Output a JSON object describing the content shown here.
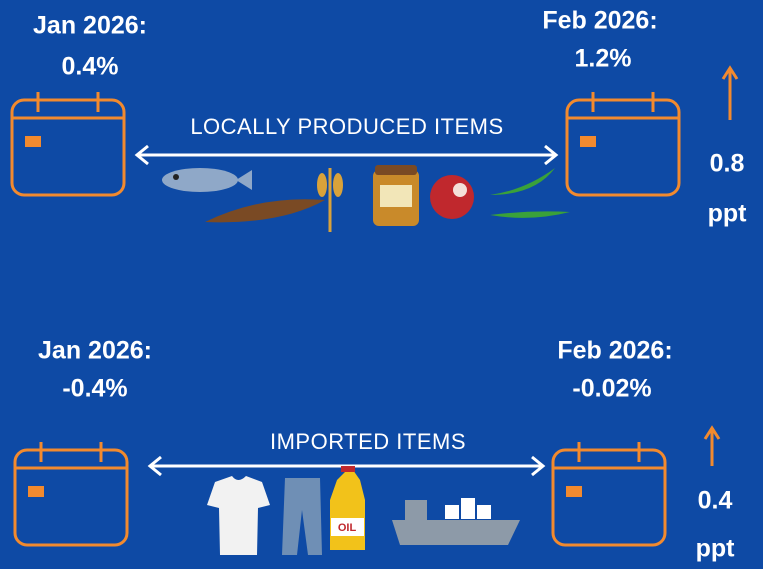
{
  "local": {
    "jan_label": "Jan 2026:",
    "jan_value": "0.4%",
    "feb_label": "Feb 2026:",
    "feb_value": "1.2%",
    "title": "LOCALLY PRODUCED ITEMS",
    "change": "0.8",
    "change_unit": "ppt"
  },
  "imported": {
    "jan_label": "Jan 2026:",
    "jan_value": "-0.4%",
    "feb_label": "Feb 2026:",
    "feb_value": "-0.02%",
    "title": "IMPORTED ITEMS",
    "change": "0.4",
    "change_unit": "ppt",
    "oil_label": "OIL"
  }
}
